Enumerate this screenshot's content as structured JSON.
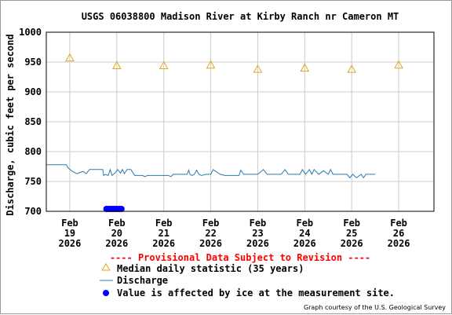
{
  "chart_data": {
    "type": "line",
    "title": "USGS 06038800 Madison River at Kirby Ranch nr Cameron MT",
    "ylabel": "Discharge, cubic feet per second",
    "xlabel": "",
    "ylim": [
      700,
      1000
    ],
    "yticks": [
      700,
      750,
      800,
      850,
      900,
      950,
      1000
    ],
    "xlim": [
      18.5,
      26.75
    ],
    "xticks": [
      {
        "x": 19,
        "label": [
          "Feb",
          "19",
          "2026"
        ]
      },
      {
        "x": 20,
        "label": [
          "Feb",
          "20",
          "2026"
        ]
      },
      {
        "x": 21,
        "label": [
          "Feb",
          "21",
          "2026"
        ]
      },
      {
        "x": 22,
        "label": [
          "Feb",
          "22",
          "2026"
        ]
      },
      {
        "x": 23,
        "label": [
          "Feb",
          "23",
          "2026"
        ]
      },
      {
        "x": 24,
        "label": [
          "Feb",
          "24",
          "2026"
        ]
      },
      {
        "x": 25,
        "label": [
          "Feb",
          "25",
          "2026"
        ]
      },
      {
        "x": 26,
        "label": [
          "Feb",
          "26",
          "2026"
        ]
      }
    ],
    "grid": true,
    "series": [
      {
        "name": "Median daily statistic (35 years)",
        "kind": "markers",
        "marker": "triangle",
        "color": "#e8a317",
        "x": [
          19,
          20,
          21,
          22,
          23,
          24,
          25,
          26
        ],
        "values": [
          957,
          944,
          944,
          945,
          938,
          940,
          938,
          945
        ]
      },
      {
        "name": "Discharge",
        "kind": "line",
        "color": "#2a7ab0",
        "x": [
          18.5,
          18.7,
          18.88,
          18.93,
          18.95,
          19.05,
          19.15,
          19.28,
          19.35,
          19.42,
          19.46,
          19.6,
          19.7,
          19.72,
          19.75,
          19.82,
          19.86,
          19.9,
          19.96,
          20.02,
          20.08,
          20.12,
          20.16,
          20.22,
          20.3,
          20.38,
          20.45,
          20.55,
          20.6,
          20.65,
          20.72,
          20.8,
          20.88,
          20.95,
          21.1,
          21.15,
          21.2,
          21.4,
          21.5,
          21.53,
          21.56,
          21.6,
          21.65,
          21.7,
          21.75,
          21.8,
          21.9,
          22.0,
          22.05,
          22.2,
          22.3,
          22.5,
          22.6,
          22.64,
          22.7,
          22.9,
          23.0,
          23.12,
          23.2,
          23.5,
          23.58,
          23.65,
          23.9,
          23.95,
          24.02,
          24.1,
          24.15,
          24.2,
          24.3,
          24.4,
          24.5,
          24.55,
          24.6,
          24.7,
          24.8,
          24.9,
          24.96,
          25.02,
          25.1,
          25.2,
          25.25,
          25.3,
          25.5
        ],
        "values": [
          778,
          778,
          778,
          778,
          774,
          767,
          763,
          767,
          763,
          770,
          770,
          770,
          770,
          760,
          762,
          760,
          770,
          760,
          764,
          770,
          764,
          770,
          763,
          770,
          770,
          760,
          760,
          760,
          758,
          760,
          760,
          760,
          760,
          760,
          760,
          758,
          762,
          762,
          762,
          769,
          762,
          760,
          762,
          769,
          762,
          760,
          762,
          762,
          770,
          762,
          760,
          760,
          760,
          769,
          762,
          762,
          762,
          770,
          762,
          762,
          770,
          762,
          762,
          770,
          762,
          770,
          762,
          770,
          762,
          768,
          762,
          770,
          762,
          762,
          762,
          762,
          756,
          762,
          756,
          762,
          756,
          762,
          762
        ]
      },
      {
        "name": "Value is affected by ice at the measurement site.",
        "kind": "markers",
        "marker": "dot",
        "color": "#0000ff",
        "x": [
          19.78,
          19.82,
          19.86,
          19.9,
          19.94,
          19.98,
          20.02,
          20.06,
          20.1
        ],
        "values": [
          704,
          704,
          704,
          704,
          704,
          704,
          704,
          704,
          704
        ]
      }
    ]
  },
  "provisional_notice": "---- Provisional Data Subject to Revision ----",
  "legend": {
    "median": "Median daily statistic (35 years)",
    "discharge": "Discharge",
    "ice": "Value is affected by ice at the measurement site."
  },
  "credit": "Graph courtesy of the U.S. Geological Survey",
  "colors": {
    "grid": "#cccccc",
    "axis": "#000000",
    "median": "#e8a317",
    "discharge": "#2a7ab0",
    "ice": "#0000ff",
    "provisional": "#ff0000"
  }
}
